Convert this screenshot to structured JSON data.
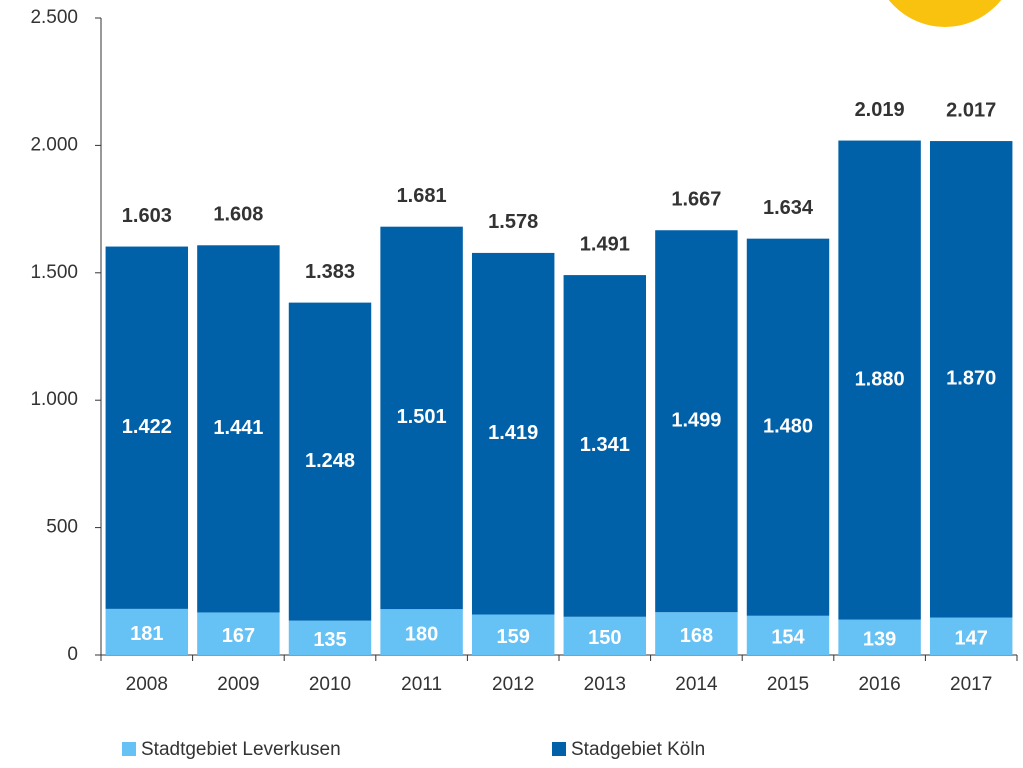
{
  "chart_data": {
    "type": "stacked_bar",
    "categories": [
      "2008",
      "2009",
      "2010",
      "2011",
      "2012",
      "2013",
      "2014",
      "2015",
      "2016",
      "2017"
    ],
    "series": [
      {
        "name": "Stadtgebiet Leverkusen",
        "color": "#66c1f4",
        "values": [
          181,
          167,
          135,
          180,
          159,
          150,
          168,
          154,
          139,
          147
        ]
      },
      {
        "name": "Stadgebiet Köln",
        "color": "#0060a8",
        "values": [
          1422,
          1441,
          1248,
          1501,
          1419,
          1341,
          1499,
          1480,
          1880,
          1870
        ],
        "value_labels": [
          "1.422",
          "1.441",
          "1.248",
          "1.501",
          "1.419",
          "1.341",
          "1.499",
          "1.480",
          "1.880",
          "1.870"
        ]
      }
    ],
    "totals": {
      "values": [
        1603,
        1608,
        1383,
        1681,
        1578,
        1491,
        1667,
        1634,
        2019,
        2017
      ],
      "value_labels": [
        "1.603",
        "1.608",
        "1.383",
        "1.681",
        "1.578",
        "1.491",
        "1.667",
        "1.634",
        "2.019",
        "2.017"
      ]
    },
    "ylim": [
      0,
      2500
    ],
    "yticks": [
      0,
      500,
      {
        "value": 1000,
        "label": "1.000"
      },
      {
        "value": 1500,
        "label": "1.500"
      },
      {
        "value": 2000,
        "label": "2.000"
      },
      {
        "value": 2500,
        "label": "2.500"
      }
    ],
    "legend": "bottom"
  }
}
